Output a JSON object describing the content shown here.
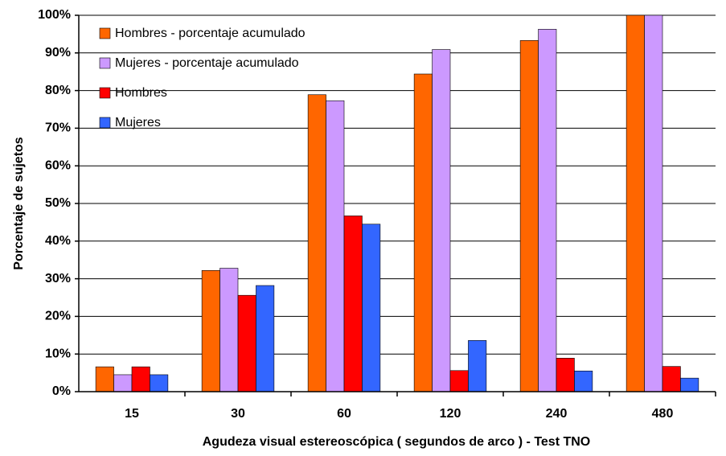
{
  "chart_data": {
    "type": "bar",
    "x_label": "Agudeza visual estereoscópica  ( segundos de arco ) - Test TNO",
    "y_label": "Porcentaje de sujetos",
    "categories": [
      "15",
      "30",
      "60",
      "120",
      "240",
      "480"
    ],
    "series": [
      {
        "name": "Hombres - porcentaje acumulado",
        "color": "#ff6600",
        "values": [
          6.6,
          32.2,
          78.9,
          84.4,
          93.3,
          100
        ]
      },
      {
        "name": "Mujeres - porcentaje acumulado",
        "color": "#cc99ff",
        "values": [
          4.5,
          32.8,
          77.3,
          90.9,
          96.3,
          100
        ]
      },
      {
        "name": "Hombres",
        "color": "#ff0000",
        "values": [
          6.6,
          25.6,
          46.7,
          5.6,
          8.9,
          6.7
        ]
      },
      {
        "name": "Mujeres",
        "color": "#3366ff",
        "values": [
          4.5,
          28.2,
          44.5,
          13.6,
          5.5,
          3.6
        ]
      }
    ],
    "ylim": [
      0,
      100
    ],
    "yticks": [
      {
        "value": 0,
        "label": "0%"
      },
      {
        "value": 10,
        "label": "10%"
      },
      {
        "value": 20,
        "label": "20%"
      },
      {
        "value": 30,
        "label": "30%"
      },
      {
        "value": 40,
        "label": "40%"
      },
      {
        "value": 50,
        "label": "50%"
      },
      {
        "value": 60,
        "label": "60%"
      },
      {
        "value": 70,
        "label": "70%"
      },
      {
        "value": 80,
        "label": "80%"
      },
      {
        "value": 90,
        "label": "90%"
      },
      {
        "value": 100,
        "label": "100%"
      }
    ],
    "grid": true,
    "legend": "top-left"
  }
}
